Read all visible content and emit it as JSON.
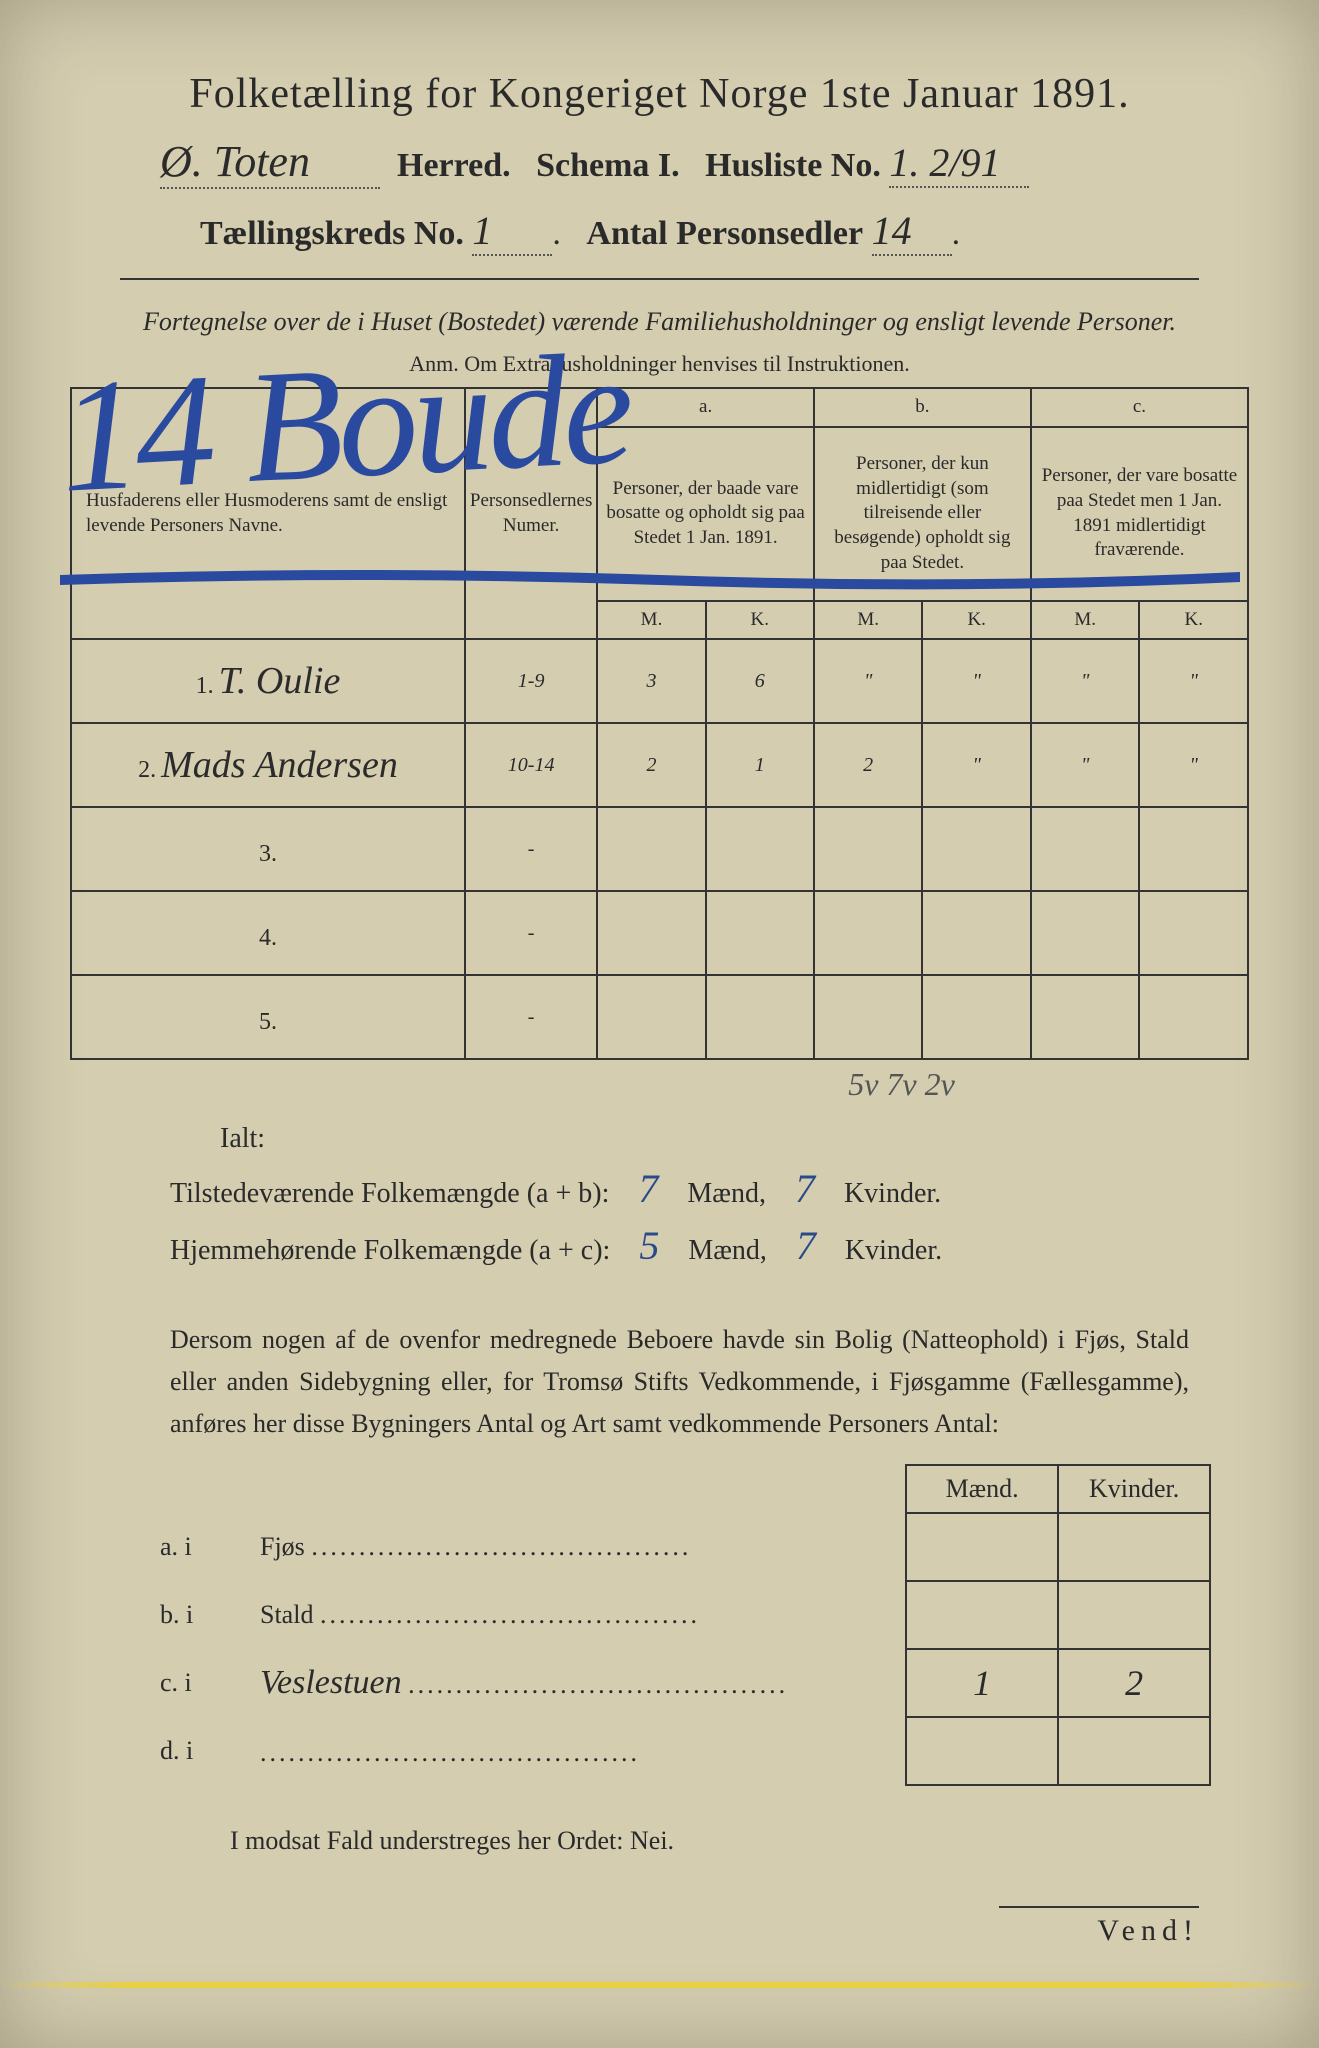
{
  "title": "Folketælling for Kongeriget Norge 1ste Januar 1891.",
  "line2": {
    "herred_hw": "Ø. Toten",
    "herred_label": "Herred.",
    "schema": "Schema I.",
    "husliste_label": "Husliste No.",
    "husliste_hw": "1. 2/91"
  },
  "line3": {
    "kreds_label": "Tællingskreds No.",
    "kreds_hw": "1",
    "antal_label": "Antal Personsedler",
    "antal_hw": "14"
  },
  "instr": "Fortegnelse over de i Huset (Bostedet) værende Familiehusholdninger og ensligt levende Personer.",
  "anm": "Anm. Om Extrahusholdninger henvises til Instruktionen.",
  "overlay": "14  Boude",
  "table": {
    "headers": {
      "name": "Husfaderens eller Husmoderens samt de ensligt levende Personers Navne.",
      "num": "Personsedlernes Numer.",
      "a_label": "a.",
      "a": "Personer, der baade vare bosatte og opholdt sig paa Stedet 1 Jan. 1891.",
      "b_label": "b.",
      "b": "Personer, der kun midlertidigt (som tilreisende eller besøgende) opholdt sig paa Stedet.",
      "c_label": "c.",
      "c": "Personer, der vare bosatte paa Stedet men 1 Jan. 1891 midlertidigt fraværende.",
      "m": "M.",
      "k": "K."
    },
    "rows": [
      {
        "n": "1.",
        "name": "T. Oulie",
        "num": "1-9",
        "am": "3",
        "ak": "6",
        "bm": "\"",
        "bk": "\"",
        "cm": "\"",
        "ck": "\""
      },
      {
        "n": "2.",
        "name": "Mads Andersen",
        "num": "10-14",
        "am": "2",
        "ak": "1",
        "bm": "2",
        "bk": "\"",
        "cm": "\"",
        "ck": "\""
      },
      {
        "n": "3.",
        "name": "",
        "num": "-",
        "am": "",
        "ak": "",
        "bm": "",
        "bk": "",
        "cm": "",
        "ck": ""
      },
      {
        "n": "4.",
        "name": "",
        "num": "-",
        "am": "",
        "ak": "",
        "bm": "",
        "bk": "",
        "cm": "",
        "ck": ""
      },
      {
        "n": "5.",
        "name": "",
        "num": "-",
        "am": "",
        "ak": "",
        "bm": "",
        "bk": "",
        "cm": "",
        "ck": ""
      }
    ],
    "totals_hw": "5v  7v  2v"
  },
  "ialt": "Ialt:",
  "sums": {
    "ab_label": "Tilstedeværende Folkemængde (a + b):",
    "ab_m": "7",
    "ab_k": "7",
    "ac_label": "Hjemmehørende Folkemængde (a + c):",
    "ac_m": "5",
    "ac_k": "7",
    "maend": "Mænd,",
    "kvinder": "Kvinder."
  },
  "para": "Dersom nogen af de ovenfor medregnede Beboere havde sin Bolig (Natteophold) i Fjøs, Stald eller anden Sidebygning eller, for Tromsø Stifts Vedkommende, i Fjøsgamme (Fællesgamme), anføres her disse Bygningers Antal og Art samt vedkommende Personers Antal:",
  "bldg": {
    "hdr_m": "Mænd.",
    "hdr_k": "Kvinder.",
    "rows": [
      {
        "l": "a.  i",
        "t": "Fjøs",
        "hw": "",
        "m": "",
        "k": ""
      },
      {
        "l": "b.  i",
        "t": "Stald",
        "hw": "",
        "m": "",
        "k": ""
      },
      {
        "l": "c.  i",
        "t": "",
        "hw": "Veslestuen",
        "m": "1",
        "k": "2"
      },
      {
        "l": "d.  i",
        "t": "",
        "hw": "",
        "m": "",
        "k": ""
      }
    ]
  },
  "modsat": "I modsat Fald understreges her Ordet: Nei.",
  "vend": "Vend!"
}
